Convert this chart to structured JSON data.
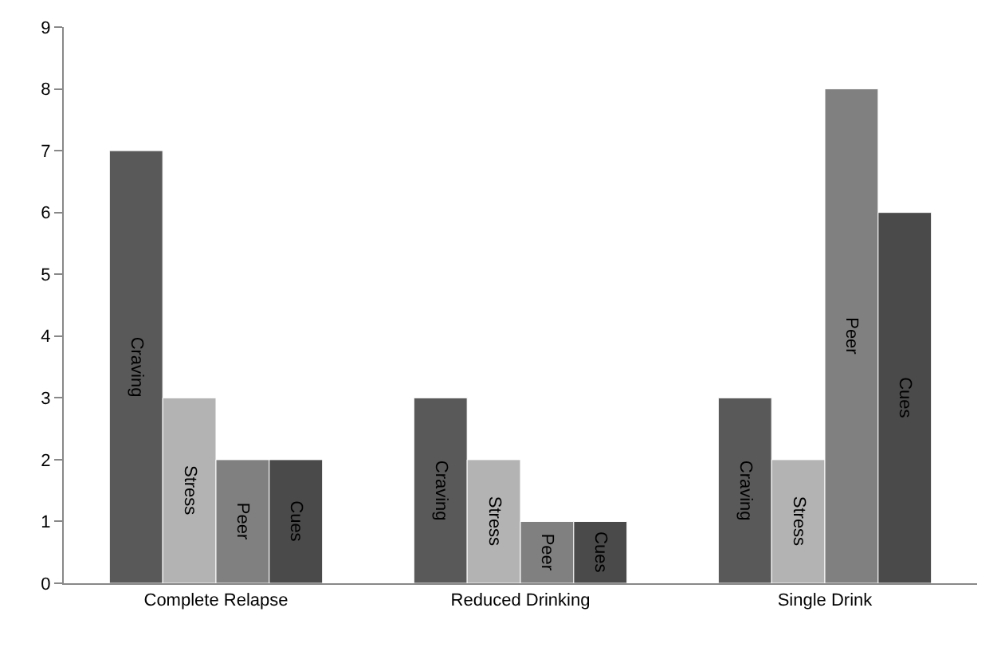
{
  "chart_data": {
    "type": "bar",
    "categories": [
      "Complete Relapse",
      "Reduced Drinking",
      "Single Drink"
    ],
    "series": [
      {
        "name": "Craving",
        "color": "#595959",
        "values": [
          7,
          3,
          3
        ]
      },
      {
        "name": "Stress",
        "color": "#b3b3b3",
        "values": [
          3,
          2,
          2
        ]
      },
      {
        "name": "Peer",
        "color": "#808080",
        "values": [
          2,
          1,
          8
        ]
      },
      {
        "name": "Cues",
        "color": "#4a4a4a",
        "values": [
          2,
          1,
          6
        ]
      }
    ],
    "ylim": [
      0,
      9
    ],
    "yticks": [
      0,
      1,
      2,
      3,
      4,
      5,
      6,
      7,
      8,
      9
    ],
    "grid": false,
    "legend": false
  }
}
